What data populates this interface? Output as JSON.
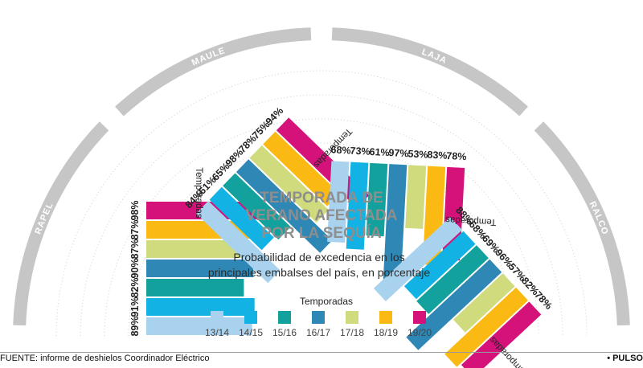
{
  "chart_data": {
    "type": "bar",
    "title_lines": [
      "TEMPORADA DE",
      "VERANO AFECTADA",
      "POR LA SEQUÍA"
    ],
    "subtitle_lines": [
      "Probabilidad de excedencia en los",
      "principales embalses del país, en porcentaje"
    ],
    "axis_label": "Temporadas",
    "categories": [
      "13/14",
      "14/15",
      "15/16",
      "16/17",
      "17/18",
      "18/19",
      "19/20"
    ],
    "colors": [
      "#a9d2ee",
      "#12b2e4",
      "#13a19d",
      "#2e87b5",
      "#cfdb7c",
      "#fbba13",
      "#d5127a"
    ],
    "legend_title": "Temporadas",
    "groups": [
      {
        "name": "RAPEL",
        "values": [
          89,
          91,
          82,
          90,
          87,
          87,
          98
        ]
      },
      {
        "name": "MAULE",
        "values": [
          84,
          61,
          65,
          98,
          78,
          75,
          94
        ]
      },
      {
        "name": "LAJA",
        "values": [
          68,
          73,
          61,
          97,
          53,
          83,
          78
        ]
      },
      {
        "name": "RALCO",
        "values": [
          88,
          68,
          69,
          96,
          57,
          82,
          78
        ]
      }
    ],
    "unit": "%"
  },
  "footer": {
    "source": "FUENTE: informe de deshielos Coordinador Eléctrico",
    "brand": "• PULSO"
  }
}
